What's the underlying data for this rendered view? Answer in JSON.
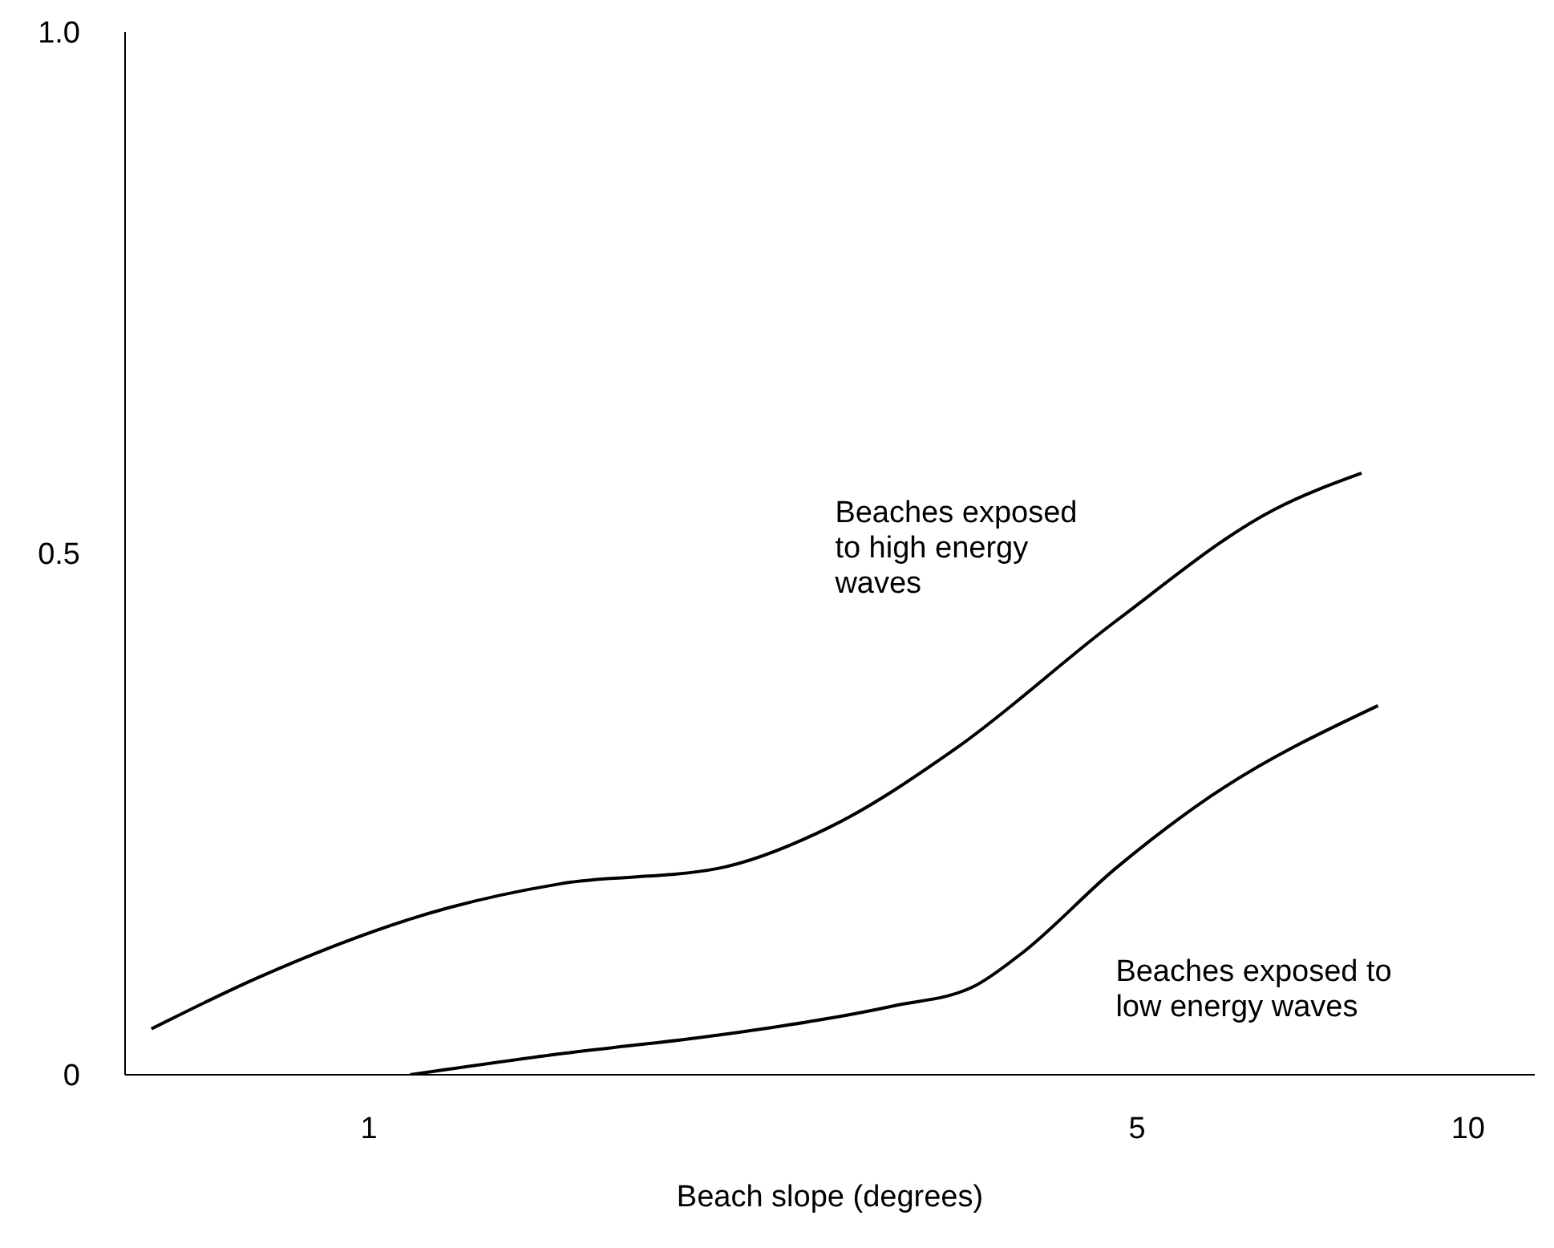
{
  "chart_data": {
    "type": "line",
    "xlabel": "Beach slope (degrees)",
    "log": "x",
    "xlim": [
      0.6,
      11.5
    ],
    "xticks": [
      1,
      5,
      10
    ],
    "ylim": [
      0,
      1
    ],
    "yticks": [
      0,
      0.5,
      {
        "value": 1,
        "label": "1.0"
      }
    ],
    "grid": false,
    "legend": false,
    "marker": "none",
    "line_style": "solid",
    "series": [
      {
        "name": "Beaches exposed to high energy waves",
        "color": "#000000",
        "x": [
          0.634,
          0.792,
          1.18,
          1.49,
          2.08,
          2.62,
          3.42,
          4.78,
          6.66,
          8.0
        ],
        "values": [
          0.044,
          0.093,
          0.16,
          0.183,
          0.198,
          0.237,
          0.313,
          0.435,
          0.542,
          0.577
        ]
      },
      {
        "name": "Beaches exposed to low energy waves",
        "color": "#000000",
        "x": [
          1.09,
          1.49,
          2.08,
          3.0,
          3.54,
          3.91,
          4.78,
          5.83,
          8.28
        ],
        "values": [
          0,
          0.02,
          0.038,
          0.066,
          0.084,
          0.115,
          0.198,
          0.267,
          0.354
        ]
      }
    ]
  }
}
